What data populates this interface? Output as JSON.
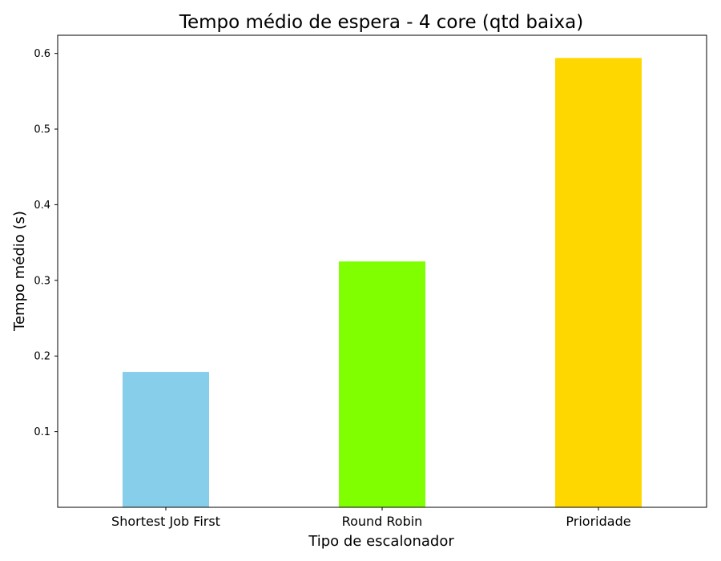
{
  "chart_data": {
    "type": "bar",
    "title": "Tempo médio de espera - 4 core (qtd baixa)",
    "xlabel": "Tipo de escalonador",
    "ylabel": "Tempo médio (s)",
    "categories": [
      "Shortest Job First",
      "Round Robin",
      "Prioridade"
    ],
    "values": [
      0.179,
      0.325,
      0.594
    ],
    "colors": [
      "#87ceeb",
      "#7fff00",
      "#ffd700"
    ],
    "ylim": [
      0.0,
      0.624
    ],
    "yticks": [
      "0.1",
      "0.2",
      "0.3",
      "0.4",
      "0.5",
      "0.6"
    ],
    "grid": false,
    "legend": "none"
  }
}
